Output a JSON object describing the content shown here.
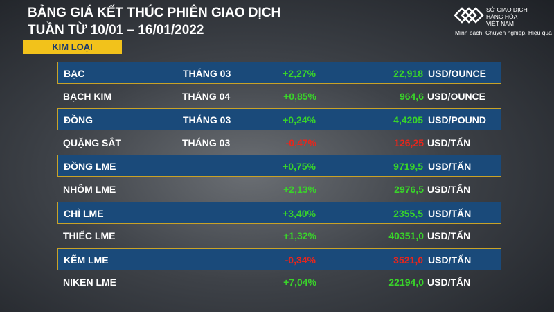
{
  "header": {
    "title_line1": "BẢNG GIÁ KẾT THÚC PHIÊN GIAO DỊCH",
    "title_line2": "TUẦN TỪ 10/01 – 16/01/2022",
    "category": "KIM LOẠI"
  },
  "logo": {
    "line1": "SỞ GIAO DỊCH",
    "line2": "HÀNG HÓA",
    "line3": "VIỆT NAM",
    "tagline": "Minh bạch. Chuyên nghiệp. Hiệu quả"
  },
  "table": {
    "rows": [
      {
        "name": "BẠC",
        "month": "THÁNG 03",
        "change": "+2,27%",
        "price": "22,918",
        "unit": "USD/OUNCE"
      },
      {
        "name": "BẠCH KIM",
        "month": "THÁNG 04",
        "change": "+0,85%",
        "price": "964,6",
        "unit": "USD/OUNCE"
      },
      {
        "name": "ĐỒNG",
        "month": "THÁNG 03",
        "change": "+0,24%",
        "price": "4,4205",
        "unit": "USD/POUND"
      },
      {
        "name": "QUẶNG SẮT",
        "month": "THÁNG 03",
        "change": "-0,47%",
        "price": "126,25",
        "unit": "USD/TẤN"
      },
      {
        "name": "ĐỒNG LME",
        "change": "+0,75%",
        "price": "9719,5",
        "unit": "USD/TẤN"
      },
      {
        "name": "NHÔM LME",
        "change": "+2,13%",
        "price": "2976,5",
        "unit": "USD/TẤN"
      },
      {
        "name": "CHÌ LME",
        "change": "+3,40%",
        "price": "2355,5",
        "unit": "USD/TẤN"
      },
      {
        "name": "THIẾC LME",
        "change": "+1,32%",
        "price": "40351,0",
        "unit": "USD/TẤN"
      },
      {
        "name": "KẼM LME",
        "change": "-0,34%",
        "price": "3521,0",
        "unit": "USD/TẤN"
      },
      {
        "name": "NIKEN LME",
        "change": "+7,04%",
        "price": "22194,0",
        "unit": "USD/TẤN"
      }
    ]
  }
}
